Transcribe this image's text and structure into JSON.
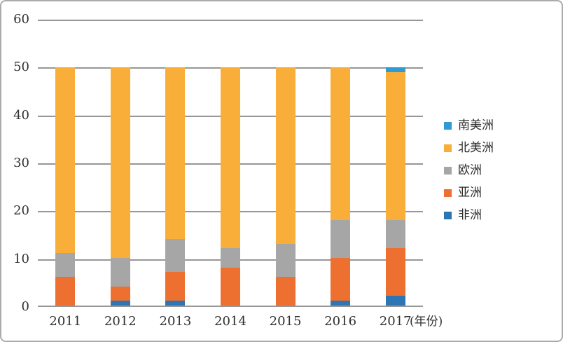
{
  "chart_data": {
    "type": "bar",
    "stacked": true,
    "title": "",
    "categories": [
      "2011",
      "2012",
      "2013",
      "2014",
      "2015",
      "2016",
      "2017"
    ],
    "series": [
      {
        "name": "非洲",
        "color": "#2E75B6",
        "values": [
          0,
          1,
          1,
          0,
          0,
          1,
          2
        ]
      },
      {
        "name": "亚洲",
        "color": "#ED7031",
        "values": [
          6,
          3,
          6,
          8,
          6,
          9,
          10
        ]
      },
      {
        "name": "欧洲",
        "color": "#A6A6A6",
        "values": [
          5,
          6,
          7,
          4,
          7,
          8,
          6
        ]
      },
      {
        "name": "北美洲",
        "color": "#FAAE3A",
        "values": [
          39,
          40,
          36,
          38,
          37,
          32,
          31
        ]
      },
      {
        "name": "南美洲",
        "color": "#2E9BD5",
        "values": [
          0,
          0,
          0,
          0,
          0,
          0,
          1
        ]
      }
    ],
    "stack_order_bottom_to_top": [
      "非洲",
      "亚洲",
      "欧洲",
      "北美洲",
      "南美洲"
    ],
    "legend_order_top_to_bottom": [
      "南美洲",
      "北美洲",
      "欧洲",
      "亚洲",
      "非洲"
    ],
    "y_ticks": [
      0,
      10,
      20,
      30,
      40,
      50,
      60
    ],
    "ylim": [
      0,
      60
    ],
    "x_axis_unit_label": "(年份)",
    "grid": "horizontal",
    "legend_position": "right",
    "bar_totals": [
      50,
      50,
      50,
      50,
      50,
      50,
      50
    ]
  },
  "styles": {
    "grid_color": "#979797",
    "border_color": "#ABABAB",
    "text_color": "#303030"
  }
}
